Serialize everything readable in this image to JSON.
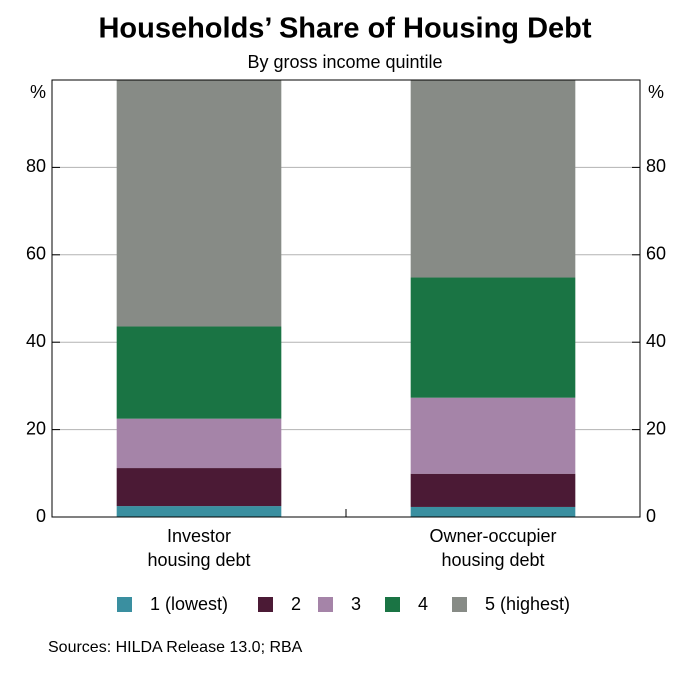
{
  "chart_data": {
    "type": "stacked-bar",
    "title": "Households’ Share of Housing Debt",
    "subtitle": "By gross income quintile",
    "y_unit_left": "%",
    "y_unit_right": "%",
    "categories": [
      [
        "Investor",
        "housing debt"
      ],
      [
        "Owner-occupier",
        "housing debt"
      ]
    ],
    "series": [
      {
        "name": "1 (lowest)",
        "color": "#3a8fa0",
        "values": [
          2.5,
          2.3
        ]
      },
      {
        "name": "2",
        "color": "#4b1a35",
        "values": [
          8.7,
          7.6
        ]
      },
      {
        "name": "3",
        "color": "#a584a8",
        "values": [
          11.3,
          17.4
        ]
      },
      {
        "name": "4",
        "color": "#1a7444",
        "values": [
          21.1,
          27.5
        ]
      },
      {
        "name": "5 (highest)",
        "color": "#878b86",
        "values": [
          56.4,
          45.2
        ]
      }
    ],
    "ylim": [
      0,
      100
    ],
    "yticks": [
      0,
      20,
      40,
      60,
      80
    ],
    "grid": true,
    "source": "Sources:  HILDA Release 13.0; RBA"
  }
}
